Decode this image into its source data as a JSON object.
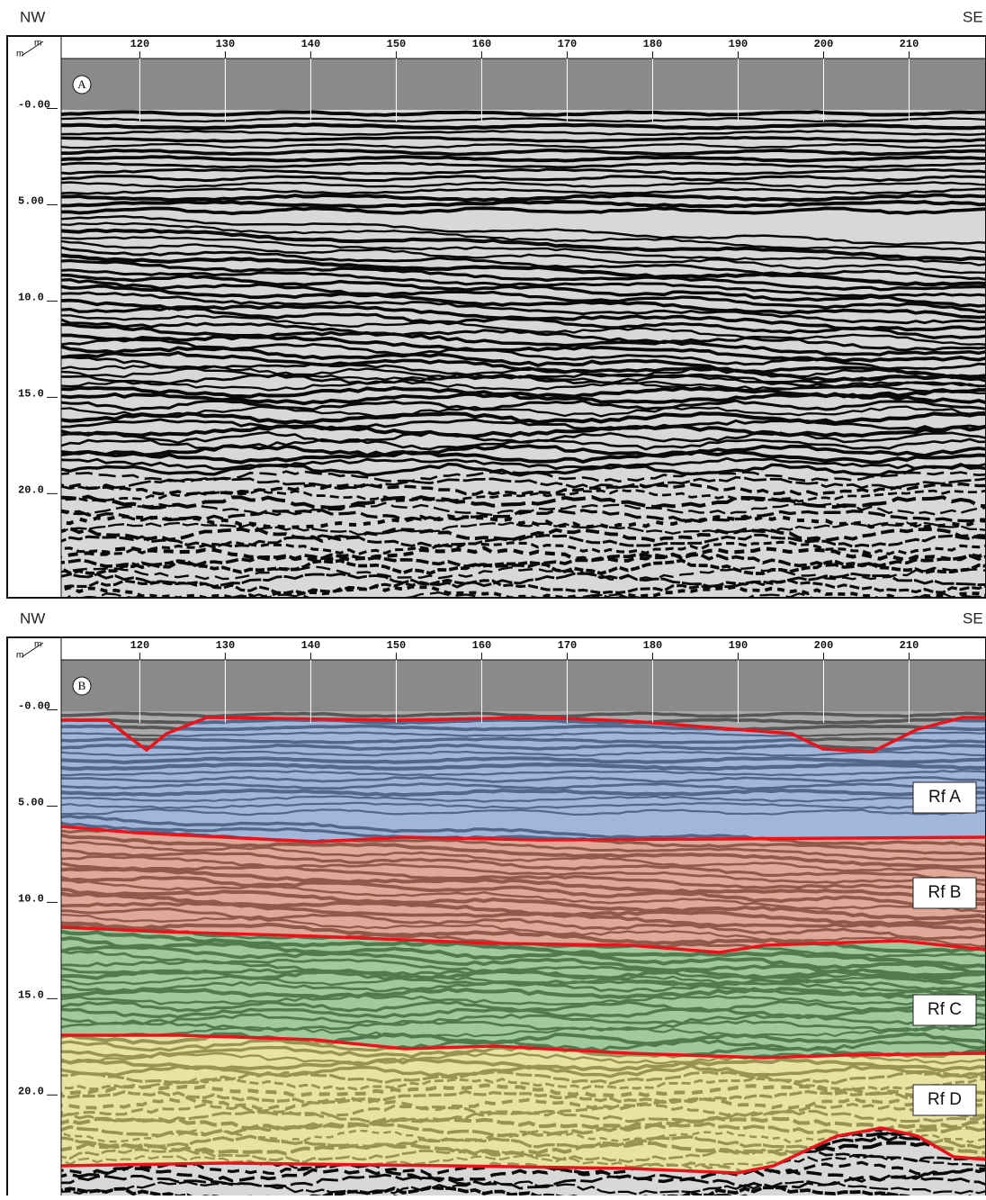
{
  "panels": [
    {
      "label": "A",
      "left": "NW",
      "right": "SE",
      "corner_top": "m",
      "corner_bottom": "m"
    },
    {
      "label": "B",
      "left": "NW",
      "right": "SE",
      "corner_top": "m",
      "corner_bottom": "m",
      "units": [
        "Rf  A",
        "Rf  B",
        "Rf  C",
        "Rf  D"
      ]
    }
  ],
  "x_axis": {
    "lim": [
      110.8,
      219.0
    ],
    "ticks": [
      120,
      130,
      140,
      150,
      160,
      170,
      180,
      190,
      200,
      210
    ]
  },
  "y_axis": {
    "lim": [
      -2.5,
      25.5
    ],
    "ticks": [
      {
        "value": 0,
        "label": "-0.00"
      },
      {
        "value": 5,
        "label": "5.00"
      },
      {
        "value": 10,
        "label": "10.0"
      },
      {
        "value": 15,
        "label": "15.0"
      },
      {
        "value": 20,
        "label": "20.0"
      }
    ]
  }
}
